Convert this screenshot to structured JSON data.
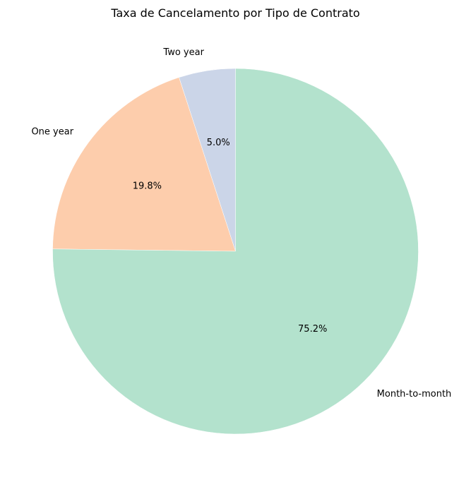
{
  "chart_data": {
    "type": "pie",
    "title": "Taxa de Cancelamento por Tipo de Contrato",
    "categories": [
      "Month-to-month",
      "One year",
      "Two year"
    ],
    "values": [
      75.2,
      19.8,
      5.0
    ],
    "percent_labels": [
      "75.2%",
      "19.8%",
      "5.0%"
    ],
    "colors": [
      "#b3e2cd",
      "#fdcdac",
      "#cbd5e8"
    ],
    "start_angle_deg": 90,
    "direction": "clockwise-from-top: Two year, One year, Month-to-month"
  }
}
